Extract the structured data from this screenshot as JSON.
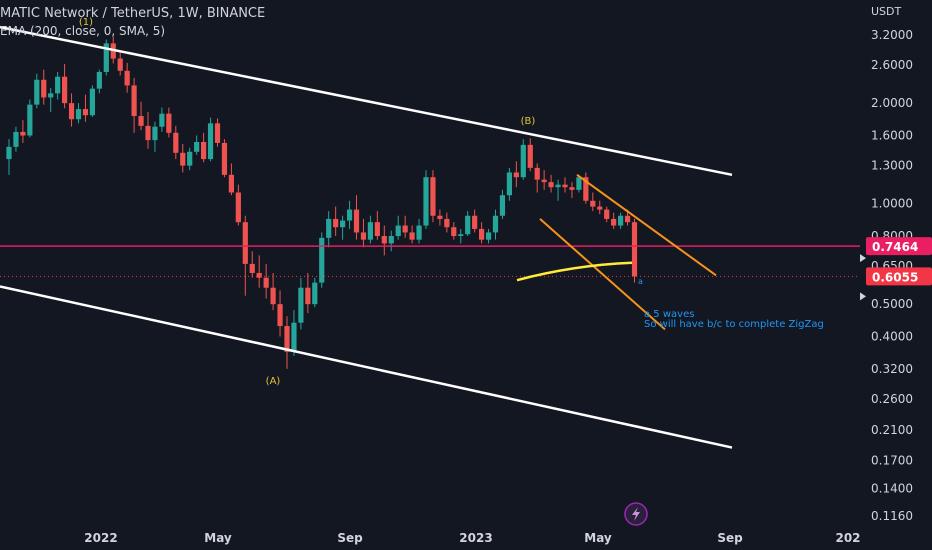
{
  "header": {
    "title": "MATIC Network / TetherUS, 1W, BINANCE",
    "indicator": "EMA (200, close, 0, SMA, 5)"
  },
  "currency": "USDT",
  "chart_data": {
    "type": "candlestick",
    "scale": "log",
    "grid": false,
    "y_ticks": [
      "3.2000",
      "2.6000",
      "2.0000",
      "1.6000",
      "1.3000",
      "1.0000",
      "0.8000",
      "0.6500",
      "0.5000",
      "0.4000",
      "0.3200",
      "0.2600",
      "0.2100",
      "0.1700",
      "0.1400",
      "0.1160"
    ],
    "x_ticks": [
      "2022",
      "May",
      "Sep",
      "2023",
      "May",
      "Sep",
      "202"
    ],
    "price_labels": [
      {
        "value": "0.7464",
        "color": "#e91e63"
      },
      {
        "value": "0.6055",
        "color": "#f23645"
      }
    ],
    "horizontal_line": {
      "value": 0.7464,
      "color": "#e91e63"
    },
    "wave_labels": [
      "(1)",
      "(B)",
      "(A)"
    ],
    "annotation_lines": [
      "a 5 waves",
      "So will have b/c to complete ZigZag"
    ],
    "annotation_mark": "a",
    "candles_ohlc": [
      [
        1.36,
        1.56,
        1.22,
        1.48
      ],
      [
        1.48,
        1.7,
        1.43,
        1.64
      ],
      [
        1.64,
        1.78,
        1.52,
        1.6
      ],
      [
        1.6,
        2.05,
        1.58,
        1.98
      ],
      [
        1.98,
        2.45,
        1.93,
        2.35
      ],
      [
        2.35,
        2.52,
        1.98,
        2.08
      ],
      [
        2.08,
        2.22,
        1.88,
        2.14
      ],
      [
        2.14,
        2.48,
        2.05,
        2.4
      ],
      [
        2.4,
        2.62,
        1.93,
        2.0
      ],
      [
        2.0,
        2.14,
        1.7,
        1.79
      ],
      [
        1.79,
        2.0,
        1.74,
        1.92
      ],
      [
        1.92,
        2.12,
        1.76,
        1.84
      ],
      [
        1.84,
        2.26,
        1.82,
        2.21
      ],
      [
        2.21,
        2.52,
        2.14,
        2.48
      ],
      [
        2.48,
        3.1,
        2.42,
        3.02
      ],
      [
        3.02,
        3.17,
        2.63,
        2.72
      ],
      [
        2.72,
        2.86,
        2.42,
        2.5
      ],
      [
        2.5,
        2.64,
        2.15,
        2.26
      ],
      [
        2.26,
        2.38,
        1.63,
        1.83
      ],
      [
        1.83,
        2.02,
        1.66,
        1.71
      ],
      [
        1.71,
        1.88,
        1.46,
        1.55
      ],
      [
        1.55,
        1.76,
        1.43,
        1.7
      ],
      [
        1.7,
        1.94,
        1.64,
        1.86
      ],
      [
        1.86,
        1.94,
        1.58,
        1.63
      ],
      [
        1.63,
        1.71,
        1.36,
        1.42
      ],
      [
        1.42,
        1.51,
        1.24,
        1.3
      ],
      [
        1.3,
        1.47,
        1.26,
        1.43
      ],
      [
        1.43,
        1.6,
        1.4,
        1.53
      ],
      [
        1.53,
        1.63,
        1.33,
        1.36
      ],
      [
        1.36,
        1.81,
        1.34,
        1.74
      ],
      [
        1.74,
        1.8,
        1.48,
        1.52
      ],
      [
        1.52,
        1.56,
        1.2,
        1.22
      ],
      [
        1.22,
        1.32,
        1.06,
        1.08
      ],
      [
        1.08,
        1.14,
        0.86,
        0.88
      ],
      [
        0.88,
        0.92,
        0.53,
        0.66
      ],
      [
        0.66,
        0.72,
        0.6,
        0.62
      ],
      [
        0.62,
        0.7,
        0.56,
        0.6
      ],
      [
        0.6,
        0.66,
        0.52,
        0.56
      ],
      [
        0.56,
        0.62,
        0.48,
        0.5
      ],
      [
        0.5,
        0.55,
        0.4,
        0.43
      ],
      [
        0.43,
        0.46,
        0.32,
        0.36
      ],
      [
        0.36,
        0.48,
        0.35,
        0.44
      ],
      [
        0.44,
        0.6,
        0.42,
        0.56
      ],
      [
        0.56,
        0.62,
        0.47,
        0.5
      ],
      [
        0.5,
        0.6,
        0.49,
        0.58
      ],
      [
        0.58,
        0.82,
        0.56,
        0.79
      ],
      [
        0.79,
        0.95,
        0.74,
        0.9
      ],
      [
        0.9,
        0.98,
        0.8,
        0.85
      ],
      [
        0.85,
        0.92,
        0.78,
        0.89
      ],
      [
        0.89,
        1.02,
        0.84,
        0.96
      ],
      [
        0.96,
        1.06,
        0.78,
        0.82
      ],
      [
        0.82,
        0.9,
        0.74,
        0.78
      ],
      [
        0.78,
        0.92,
        0.76,
        0.88
      ],
      [
        0.88,
        0.95,
        0.78,
        0.8
      ],
      [
        0.8,
        0.86,
        0.7,
        0.76
      ],
      [
        0.76,
        0.83,
        0.72,
        0.8
      ],
      [
        0.8,
        0.92,
        0.78,
        0.86
      ],
      [
        0.86,
        0.92,
        0.79,
        0.82
      ],
      [
        0.82,
        0.86,
        0.76,
        0.78
      ],
      [
        0.78,
        0.9,
        0.76,
        0.86
      ],
      [
        0.86,
        1.26,
        0.84,
        1.2
      ],
      [
        1.2,
        1.26,
        0.88,
        0.92
      ],
      [
        0.92,
        0.96,
        0.86,
        0.9
      ],
      [
        0.9,
        0.94,
        0.82,
        0.85
      ],
      [
        0.85,
        0.88,
        0.78,
        0.8
      ],
      [
        0.8,
        0.84,
        0.76,
        0.81
      ],
      [
        0.81,
        0.95,
        0.8,
        0.92
      ],
      [
        0.92,
        0.96,
        0.82,
        0.84
      ],
      [
        0.84,
        0.88,
        0.76,
        0.78
      ],
      [
        0.78,
        0.84,
        0.76,
        0.82
      ],
      [
        0.82,
        0.96,
        0.78,
        0.92
      ],
      [
        0.92,
        1.1,
        0.9,
        1.06
      ],
      [
        1.06,
        1.28,
        1.02,
        1.24
      ],
      [
        1.24,
        1.34,
        1.12,
        1.2
      ],
      [
        1.2,
        1.56,
        1.18,
        1.5
      ],
      [
        1.5,
        1.57,
        1.25,
        1.28
      ],
      [
        1.28,
        1.32,
        1.08,
        1.18
      ],
      [
        1.18,
        1.26,
        1.1,
        1.16
      ],
      [
        1.16,
        1.22,
        1.08,
        1.12
      ],
      [
        1.12,
        1.18,
        1.02,
        1.14
      ],
      [
        1.14,
        1.2,
        1.08,
        1.12
      ],
      [
        1.12,
        1.16,
        1.04,
        1.1
      ],
      [
        1.1,
        1.22,
        1.08,
        1.2
      ],
      [
        1.2,
        1.24,
        1.0,
        1.02
      ],
      [
        1.02,
        1.08,
        0.95,
        0.98
      ],
      [
        0.98,
        1.02,
        0.93,
        0.96
      ],
      [
        0.96,
        0.98,
        0.88,
        0.9
      ],
      [
        0.9,
        0.94,
        0.84,
        0.86
      ],
      [
        0.86,
        0.94,
        0.84,
        0.92
      ],
      [
        0.92,
        0.96,
        0.86,
        0.88
      ],
      [
        0.88,
        0.9,
        0.58,
        0.6055
      ]
    ]
  },
  "footer_icon": "lightning-icon"
}
